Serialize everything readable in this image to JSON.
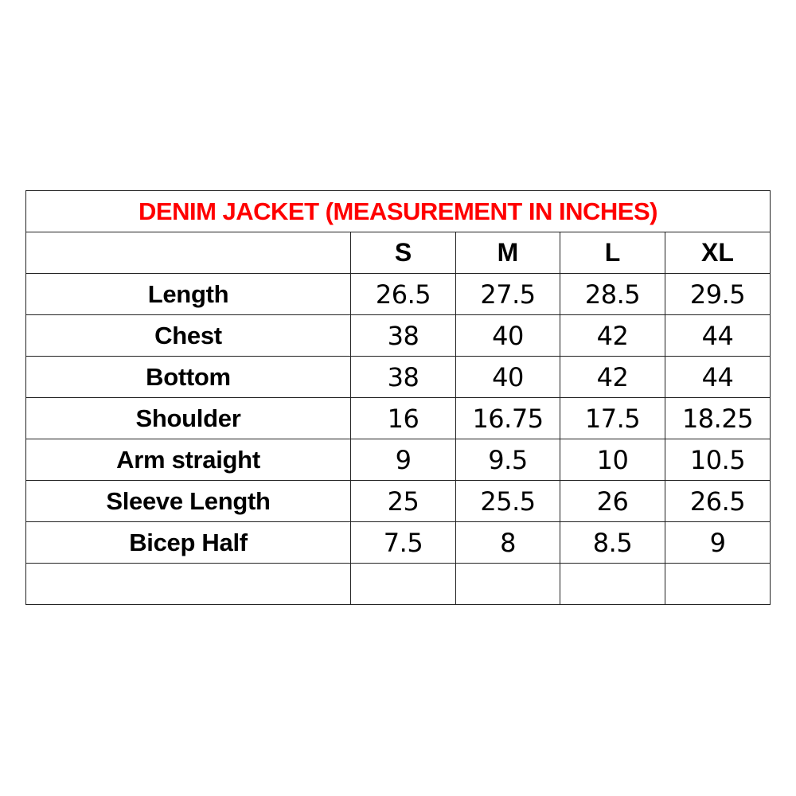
{
  "title": "DENIM JACKET (MEASUREMENT IN INCHES)",
  "title_color": "#ff0000",
  "sizes": [
    "S",
    "M",
    "L",
    "XL"
  ],
  "rows": [
    {
      "label": "Length",
      "values": [
        "26.5",
        "27.5",
        "28.5",
        "29.5"
      ]
    },
    {
      "label": "Chest",
      "values": [
        "38",
        "40",
        "42",
        "44"
      ]
    },
    {
      "label": "Bottom",
      "values": [
        "38",
        "40",
        "42",
        "44"
      ]
    },
    {
      "label": "Shoulder",
      "values": [
        "16",
        "16.75",
        "17.5",
        "18.25"
      ]
    },
    {
      "label": "Arm straight",
      "values": [
        "9",
        "9.5",
        "10",
        "10.5"
      ]
    },
    {
      "label": "Sleeve Length",
      "values": [
        "25",
        "25.5",
        "26",
        "26.5"
      ]
    },
    {
      "label": "Bicep Half",
      "values": [
        "7.5",
        "8",
        "8.5",
        "9"
      ]
    },
    {
      "label": "",
      "values": [
        "",
        "",
        "",
        ""
      ]
    }
  ]
}
